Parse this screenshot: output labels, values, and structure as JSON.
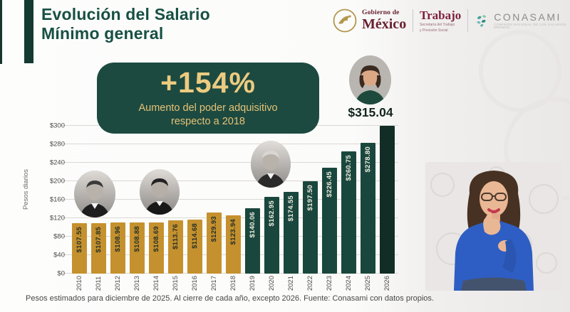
{
  "header": {
    "title_line1": "Evolución del Salario",
    "title_line2": "Mínimo general"
  },
  "logos": {
    "gobierno_small": "Gobierno de",
    "gobierno_big": "México",
    "trabajo_name": "Trabajo",
    "trabajo_caption1": "Secretaría del Trabajo",
    "trabajo_caption2": "y Previsión Social",
    "conasami_name": "CONASAMI",
    "conasami_caption": "COMISIÓN NACIONAL DE LOS SALARIOS MÍNIMOS"
  },
  "callout": {
    "percent": "+154%",
    "caption_line1": "Aumento del poder adquisitivo",
    "caption_line2": "respecto a 2018"
  },
  "chart_data": {
    "type": "bar",
    "title": "Evolución del Salario Mínimo general",
    "ylabel": "Pesos diarios",
    "categories": [
      "2010",
      "2011",
      "2012",
      "2013",
      "2014",
      "2015",
      "2016",
      "2017",
      "2018",
      "2019",
      "2020",
      "2021",
      "2022",
      "2023",
      "2024",
      "2025",
      "2026"
    ],
    "values": [
      107.55,
      107.85,
      108.96,
      108.88,
      108.69,
      113.76,
      114.68,
      129.93,
      123.94,
      140.06,
      162.95,
      174.55,
      197.5,
      226.45,
      260.75,
      278.8,
      315.04
    ],
    "bar_labels": [
      "$107.55",
      "$107.85",
      "$108.96",
      "$108.88",
      "$108.69",
      "$113.76",
      "$114.68",
      "$129.93",
      "$123.94",
      "$140.06",
      "$162.95",
      "$174.55",
      "$197.50",
      "$226.45",
      "$260.75",
      "$278.80",
      ""
    ],
    "bar_color_keys": [
      "gold",
      "gold",
      "gold",
      "gold",
      "gold",
      "gold",
      "gold",
      "gold",
      "gold",
      "green",
      "green",
      "green",
      "green",
      "green",
      "green",
      "green",
      "dark"
    ],
    "top_label": "$315.04",
    "yticks_top_to_bottom": [
      "$300",
      "$280",
      "$240",
      "$200",
      "$160",
      "$120",
      "$80",
      "$40",
      "$0"
    ],
    "ylim": [
      0,
      320
    ],
    "grid": true,
    "legend": false
  },
  "footer": {
    "text": "Pesos estimados para diciembre de 2025. Al cierre de cada año, excepto 2026. Fuente: Conasami con datos propios."
  },
  "colors": {
    "title_green": "#175043",
    "callout_bg": "#1d4a40",
    "gold_text": "#eccb80",
    "bar_gold": "#c5912e",
    "bar_green": "#1a473d",
    "bar_dark": "#122d26",
    "brand_maroon": "#7e1f3c",
    "conasami_teal": "#3fa09a"
  }
}
